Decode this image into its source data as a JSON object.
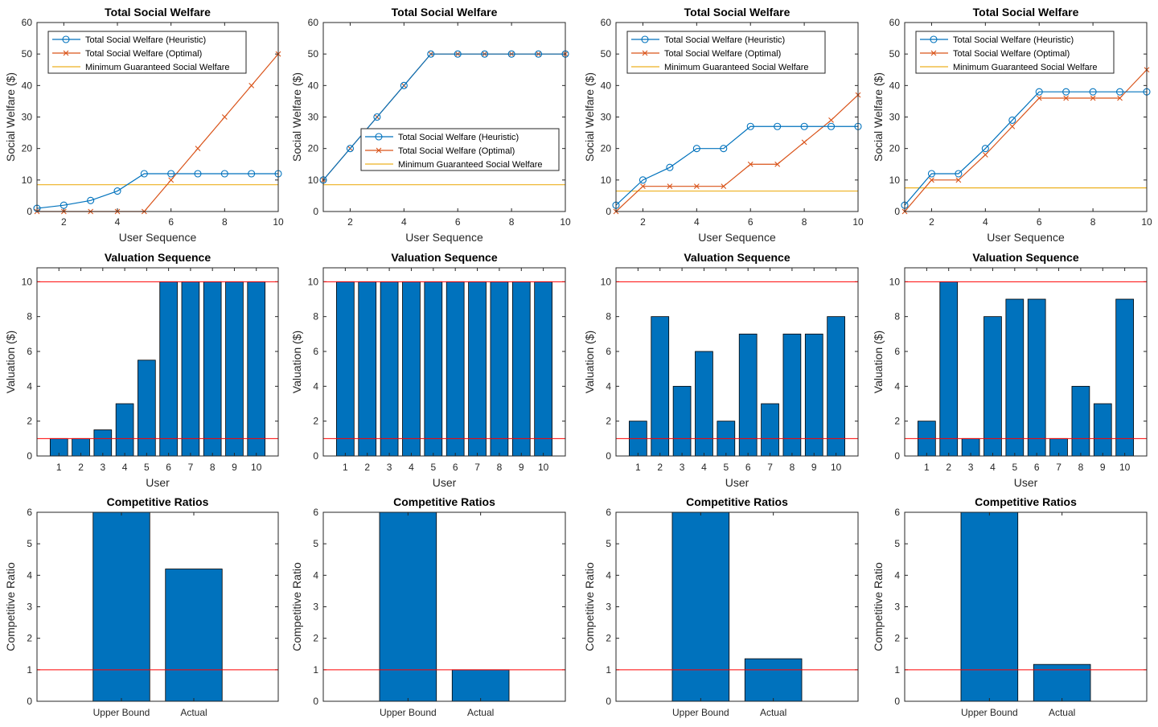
{
  "colors": {
    "heuristic": "#0072BD",
    "optimal": "#D95319",
    "minimum": "#EDB120",
    "bar": "#0072BD",
    "refline": "#FF0000",
    "axis": "#262626"
  },
  "chart_data": [
    {
      "type": "line",
      "panel": "welfare",
      "title": "Total Social Welfare",
      "xlabel": "User Sequence",
      "ylabel": "Social Welfare ($)",
      "xlim": [
        1,
        10
      ],
      "ylim": [
        0,
        60
      ],
      "xticks": [
        "2",
        "4",
        "6",
        "8",
        "10"
      ],
      "yticks": [
        "0",
        "10",
        "20",
        "30",
        "40",
        "50",
        "60"
      ],
      "legend_position": "top-left",
      "series": [
        {
          "name": "Total Social Welfare (Heuristic)",
          "x": [
            1,
            2,
            3,
            4,
            5,
            6,
            7,
            8,
            9,
            10
          ],
          "values": [
            1,
            2,
            3.5,
            6.5,
            12,
            12,
            12,
            12,
            12,
            12
          ]
        },
        {
          "name": "Total Social Welfare (Optimal)",
          "x": [
            1,
            2,
            3,
            4,
            5,
            6,
            7,
            8,
            9,
            10
          ],
          "values": [
            0,
            0,
            0,
            0,
            0,
            10,
            20,
            30,
            40,
            50
          ]
        },
        {
          "name": "Minimum Guaranteed Social Welfare",
          "x": [
            1,
            10
          ],
          "values": [
            8.5,
            8.5
          ]
        }
      ]
    },
    {
      "type": "line",
      "panel": "welfare",
      "title": "Total Social Welfare",
      "xlabel": "User Sequence",
      "ylabel": "Social Welfare ($)",
      "xlim": [
        1,
        10
      ],
      "ylim": [
        0,
        60
      ],
      "xticks": [
        "2",
        "4",
        "6",
        "8",
        "10"
      ],
      "yticks": [
        "0",
        "10",
        "20",
        "30",
        "40",
        "50",
        "60"
      ],
      "legend_position": "center-right",
      "series": [
        {
          "name": "Total Social Welfare (Heuristic)",
          "x": [
            1,
            2,
            3,
            4,
            5,
            6,
            7,
            8,
            9,
            10
          ],
          "values": [
            10,
            20,
            30,
            40,
            50,
            50,
            50,
            50,
            50,
            50
          ]
        },
        {
          "name": "Total Social Welfare (Optimal)",
          "x": [
            1,
            2,
            3,
            4,
            5,
            6,
            7,
            8,
            9,
            10
          ],
          "values": [
            10,
            20,
            30,
            40,
            50,
            50,
            50,
            50,
            50,
            50
          ]
        },
        {
          "name": "Minimum Guaranteed Social Welfare",
          "x": [
            1,
            10
          ],
          "values": [
            8.5,
            8.5
          ]
        }
      ]
    },
    {
      "type": "line",
      "panel": "welfare",
      "title": "Total Social Welfare",
      "xlabel": "User Sequence",
      "ylabel": "Social Welfare ($)",
      "xlim": [
        1,
        10
      ],
      "ylim": [
        0,
        60
      ],
      "xticks": [
        "2",
        "4",
        "6",
        "8",
        "10"
      ],
      "yticks": [
        "0",
        "10",
        "20",
        "30",
        "40",
        "50",
        "60"
      ],
      "legend_position": "top-left",
      "series": [
        {
          "name": "Total Social Welfare (Heuristic)",
          "x": [
            1,
            2,
            3,
            4,
            5,
            6,
            7,
            8,
            9,
            10
          ],
          "values": [
            2,
            10,
            14,
            20,
            20,
            27,
            27,
            27,
            27,
            27
          ]
        },
        {
          "name": "Total Social Welfare (Optimal)",
          "x": [
            1,
            2,
            3,
            4,
            5,
            6,
            7,
            8,
            9,
            10
          ],
          "values": [
            0,
            8,
            8,
            8,
            8,
            15,
            15,
            22,
            29,
            37
          ]
        },
        {
          "name": "Minimum Guaranteed Social Welfare",
          "x": [
            1,
            10
          ],
          "values": [
            6.5,
            6.5
          ]
        }
      ]
    },
    {
      "type": "line",
      "panel": "welfare",
      "title": "Total Social Welfare",
      "xlabel": "User Sequence",
      "ylabel": "Social Welfare ($)",
      "xlim": [
        1,
        10
      ],
      "ylim": [
        0,
        60
      ],
      "xticks": [
        "2",
        "4",
        "6",
        "8",
        "10"
      ],
      "yticks": [
        "0",
        "10",
        "20",
        "30",
        "40",
        "50",
        "60"
      ],
      "legend_position": "top-left",
      "series": [
        {
          "name": "Total Social Welfare (Heuristic)",
          "x": [
            1,
            2,
            3,
            4,
            5,
            6,
            7,
            8,
            9,
            10
          ],
          "values": [
            2,
            12,
            12,
            20,
            29,
            38,
            38,
            38,
            38,
            38
          ]
        },
        {
          "name": "Total Social Welfare (Optimal)",
          "x": [
            1,
            2,
            3,
            4,
            5,
            6,
            7,
            8,
            9,
            10
          ],
          "values": [
            0,
            10,
            10,
            18,
            27,
            36,
            36,
            36,
            36,
            45
          ]
        },
        {
          "name": "Minimum Guaranteed Social Welfare",
          "x": [
            1,
            10
          ],
          "values": [
            7.5,
            7.5
          ]
        }
      ]
    },
    {
      "type": "bar",
      "panel": "valuation",
      "title": "Valuation Sequence",
      "xlabel": "User",
      "ylabel": "Valuation  ($)",
      "categories": [
        "1",
        "2",
        "3",
        "4",
        "5",
        "6",
        "7",
        "8",
        "9",
        "10"
      ],
      "values": [
        1,
        1,
        1.5,
        3,
        5.5,
        10,
        10,
        10,
        10,
        10
      ],
      "ylim": [
        0,
        10.8
      ],
      "yticks": [
        "0",
        "2",
        "4",
        "6",
        "8",
        "10"
      ],
      "reference_lines": [
        1,
        10
      ]
    },
    {
      "type": "bar",
      "panel": "valuation",
      "title": "Valuation Sequence",
      "xlabel": "User",
      "ylabel": "Valuation ($)",
      "categories": [
        "1",
        "2",
        "3",
        "4",
        "5",
        "6",
        "7",
        "8",
        "9",
        "10"
      ],
      "values": [
        10,
        10,
        10,
        10,
        10,
        10,
        10,
        10,
        10,
        10
      ],
      "ylim": [
        0,
        10.8
      ],
      "yticks": [
        "0",
        "2",
        "4",
        "6",
        "8",
        "10"
      ],
      "reference_lines": [
        1,
        10
      ]
    },
    {
      "type": "bar",
      "panel": "valuation",
      "title": "Valuation Sequence",
      "xlabel": "User",
      "ylabel": "Valuation ($)",
      "categories": [
        "1",
        "2",
        "3",
        "4",
        "5",
        "6",
        "7",
        "8",
        "9",
        "10"
      ],
      "values": [
        2,
        8,
        4,
        6,
        2,
        7,
        3,
        7,
        7,
        8
      ],
      "ylim": [
        0,
        10.8
      ],
      "yticks": [
        "0",
        "2",
        "4",
        "6",
        "8",
        "10"
      ],
      "reference_lines": [
        1,
        10
      ]
    },
    {
      "type": "bar",
      "panel": "valuation",
      "title": "Valuation Sequence",
      "xlabel": "User",
      "ylabel": "Valuation ($)",
      "categories": [
        "1",
        "2",
        "3",
        "4",
        "5",
        "6",
        "7",
        "8",
        "9",
        "10"
      ],
      "values": [
        2,
        10,
        1,
        8,
        9,
        9,
        1,
        4,
        3,
        9
      ],
      "ylim": [
        0,
        10.8
      ],
      "yticks": [
        "0",
        "2",
        "4",
        "6",
        "8",
        "10"
      ],
      "reference_lines": [
        1,
        10
      ]
    },
    {
      "type": "bar",
      "panel": "ratio",
      "title": "Competitive Ratios",
      "xlabel": "",
      "ylabel": "Competitive Ratio",
      "categories": [
        "Upper Bound",
        "Actual"
      ],
      "values": [
        6,
        4.2
      ],
      "ylim": [
        0,
        6
      ],
      "yticks": [
        "0",
        "1",
        "2",
        "3",
        "4",
        "5",
        "6"
      ],
      "reference_lines": [
        1
      ]
    },
    {
      "type": "bar",
      "panel": "ratio",
      "title": "Competitive Ratios",
      "xlabel": "",
      "ylabel": "Competitive Ratio",
      "categories": [
        "Upper Bound",
        "Actual"
      ],
      "values": [
        6,
        1
      ],
      "ylim": [
        0,
        6
      ],
      "yticks": [
        "0",
        "1",
        "2",
        "3",
        "4",
        "5",
        "6"
      ],
      "reference_lines": [
        1
      ]
    },
    {
      "type": "bar",
      "panel": "ratio",
      "title": "Competitive Ratios",
      "xlabel": "",
      "ylabel": "Competitive Ratio",
      "categories": [
        "Upper Bound",
        "Actual"
      ],
      "values": [
        6,
        1.35
      ],
      "ylim": [
        0,
        6
      ],
      "yticks": [
        "0",
        "1",
        "2",
        "3",
        "4",
        "5",
        "6"
      ],
      "reference_lines": [
        1
      ]
    },
    {
      "type": "bar",
      "panel": "ratio",
      "title": "Competitive Ratios",
      "xlabel": "",
      "ylabel": "Competitive Ratio",
      "categories": [
        "Upper Bound",
        "Actual"
      ],
      "values": [
        6,
        1.17
      ],
      "ylim": [
        0,
        6
      ],
      "yticks": [
        "0",
        "1",
        "2",
        "3",
        "4",
        "5",
        "6"
      ],
      "reference_lines": [
        1
      ]
    }
  ]
}
